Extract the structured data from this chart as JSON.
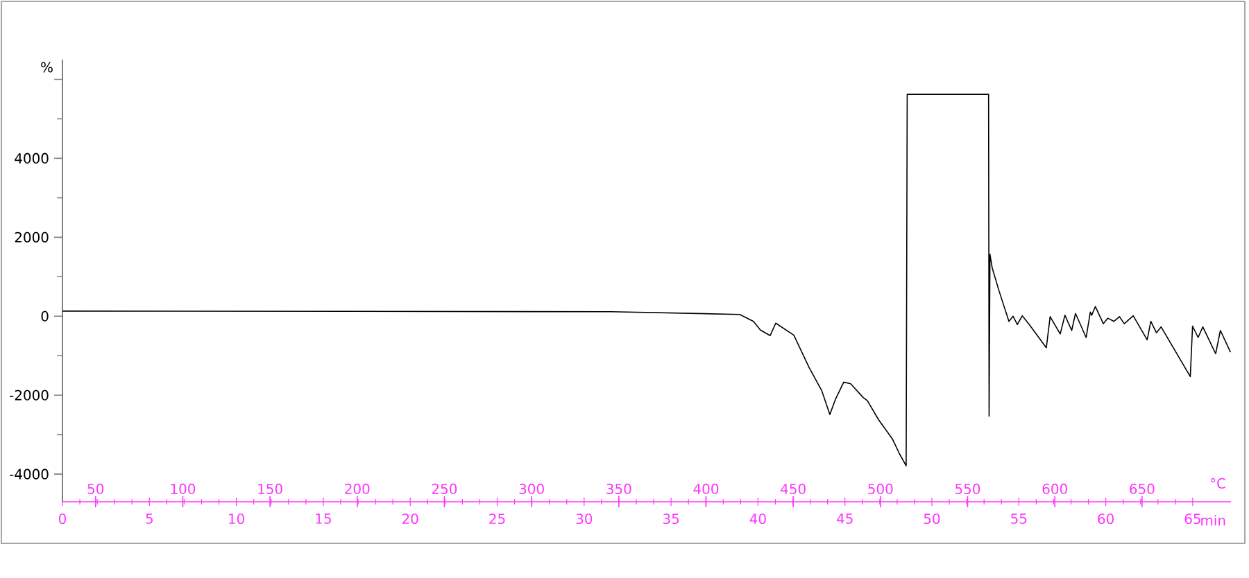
{
  "chart_data": {
    "type": "line",
    "ylabel": "%",
    "xlabel": "min",
    "x2label": "°C",
    "xlim": [
      0,
      67.2
    ],
    "xticks": [
      0,
      5,
      10,
      15,
      20,
      25,
      30,
      35,
      40,
      45,
      50,
      55,
      60,
      65
    ],
    "x2lim": [
      31,
      701
    ],
    "x2ticks": [
      50,
      100,
      150,
      200,
      250,
      300,
      350,
      400,
      450,
      500,
      550,
      600,
      650
    ],
    "ylim": [
      -4700,
      6500
    ],
    "yticks": [
      -4000,
      -2000,
      0,
      2000,
      4000,
      {
        "value": 6000,
        "label": null
      }
    ],
    "grid": false,
    "x": [
      0,
      31.52,
      38.95,
      39.74,
      40.14,
      40.7,
      41.02,
      42.06,
      42.94,
      43.66,
      44.13,
      44.45,
      44.93,
      45.33,
      46.05,
      46.29,
      46.93,
      47.73,
      48.13,
      48.52,
      48.58,
      53.26,
      53.29,
      53.34,
      53.47,
      53.87,
      54.43,
      54.67,
      54.91,
      55.2,
      55.6,
      56.58,
      56.8,
      57.38,
      57.65,
      58.04,
      58.26,
      58.87,
      59.11,
      59.19,
      59.4,
      59.86,
      60.12,
      60.47,
      60.79,
      61.06,
      61.58,
      62.38,
      62.59,
      62.91,
      63.18,
      64.86,
      64.99,
      65.31,
      65.58,
      66.32,
      66.59,
      67.17
    ],
    "series": [
      {
        "color": "#000000",
        "values": [
          130,
          115,
          45,
          -130,
          -350,
          -490,
          -175,
          -480,
          -1300,
          -1880,
          -2490,
          -2110,
          -1670,
          -1710,
          -2060,
          -2140,
          -2620,
          -3110,
          -3480,
          -3790,
          5620,
          5620,
          -2530,
          1570,
          1220,
          630,
          -130,
          0,
          -210,
          10,
          -210,
          -800,
          -10,
          -450,
          25,
          -360,
          70,
          -540,
          105,
          25,
          245,
          -190,
          -50,
          -130,
          -10,
          -190,
          10,
          -600,
          -130,
          -420,
          -270,
          -1530,
          -250,
          -540,
          -270,
          -950,
          -360,
          -910
        ]
      }
    ]
  }
}
